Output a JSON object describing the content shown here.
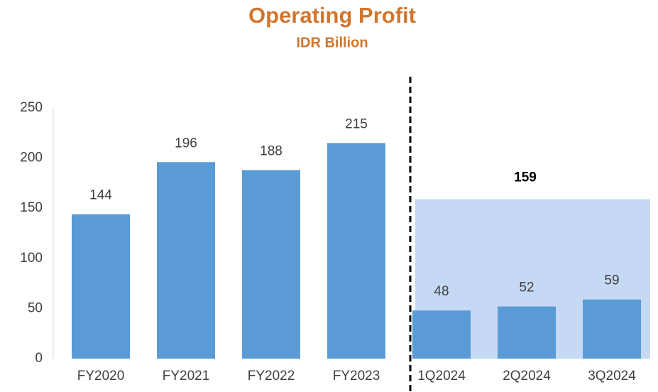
{
  "chart_data": {
    "type": "bar",
    "title": "Operating Profit",
    "subtitle": "IDR Billion",
    "categories": [
      "FY2020",
      "FY2021",
      "FY2022",
      "FY2023",
      "1Q2024",
      "2Q2024",
      "3Q2024"
    ],
    "values": [
      144,
      196,
      188,
      215,
      48,
      52,
      59
    ],
    "color": "#5b9bd5",
    "ylim": [
      0,
      250
    ],
    "yticks": [
      0,
      50,
      100,
      150,
      200,
      250
    ],
    "grid": false,
    "period_total": {
      "value": 159,
      "color": "#c5d9f5"
    }
  }
}
